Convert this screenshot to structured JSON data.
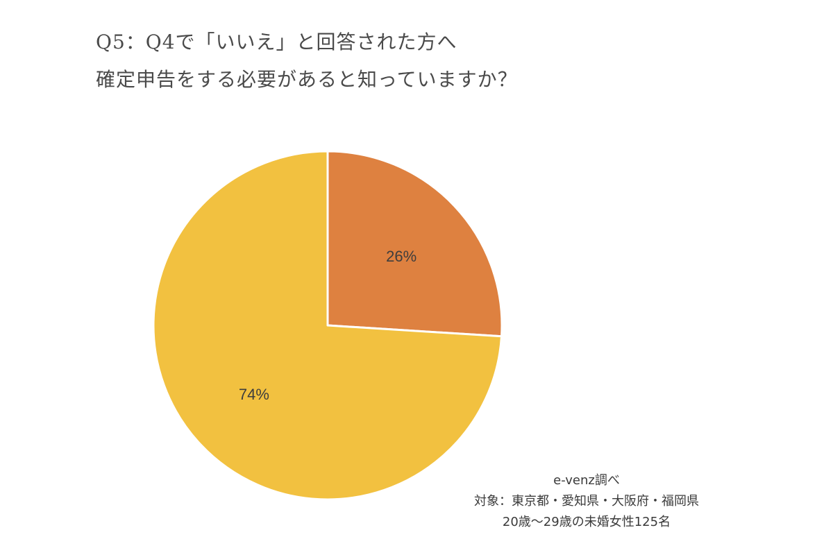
{
  "chart_data": {
    "type": "pie",
    "title_lines": [
      "Q5：Q4で「いいえ」と回答された方へ",
      "確定申告をする必要があると知っていますか？"
    ],
    "slices": [
      {
        "value": 26,
        "label": "26%",
        "color": "#de8140"
      },
      {
        "value": 74,
        "label": "74%",
        "color": "#f2c140"
      }
    ],
    "start_angle_deg": 0,
    "direction": "clockwise",
    "slice_border_color": "#ffffff"
  },
  "footnote": {
    "source": "e-venz調べ",
    "target": "対象：東京都・愛知県・大阪府・福岡県",
    "sample": "20歳～29歳の未婚女性125名"
  }
}
